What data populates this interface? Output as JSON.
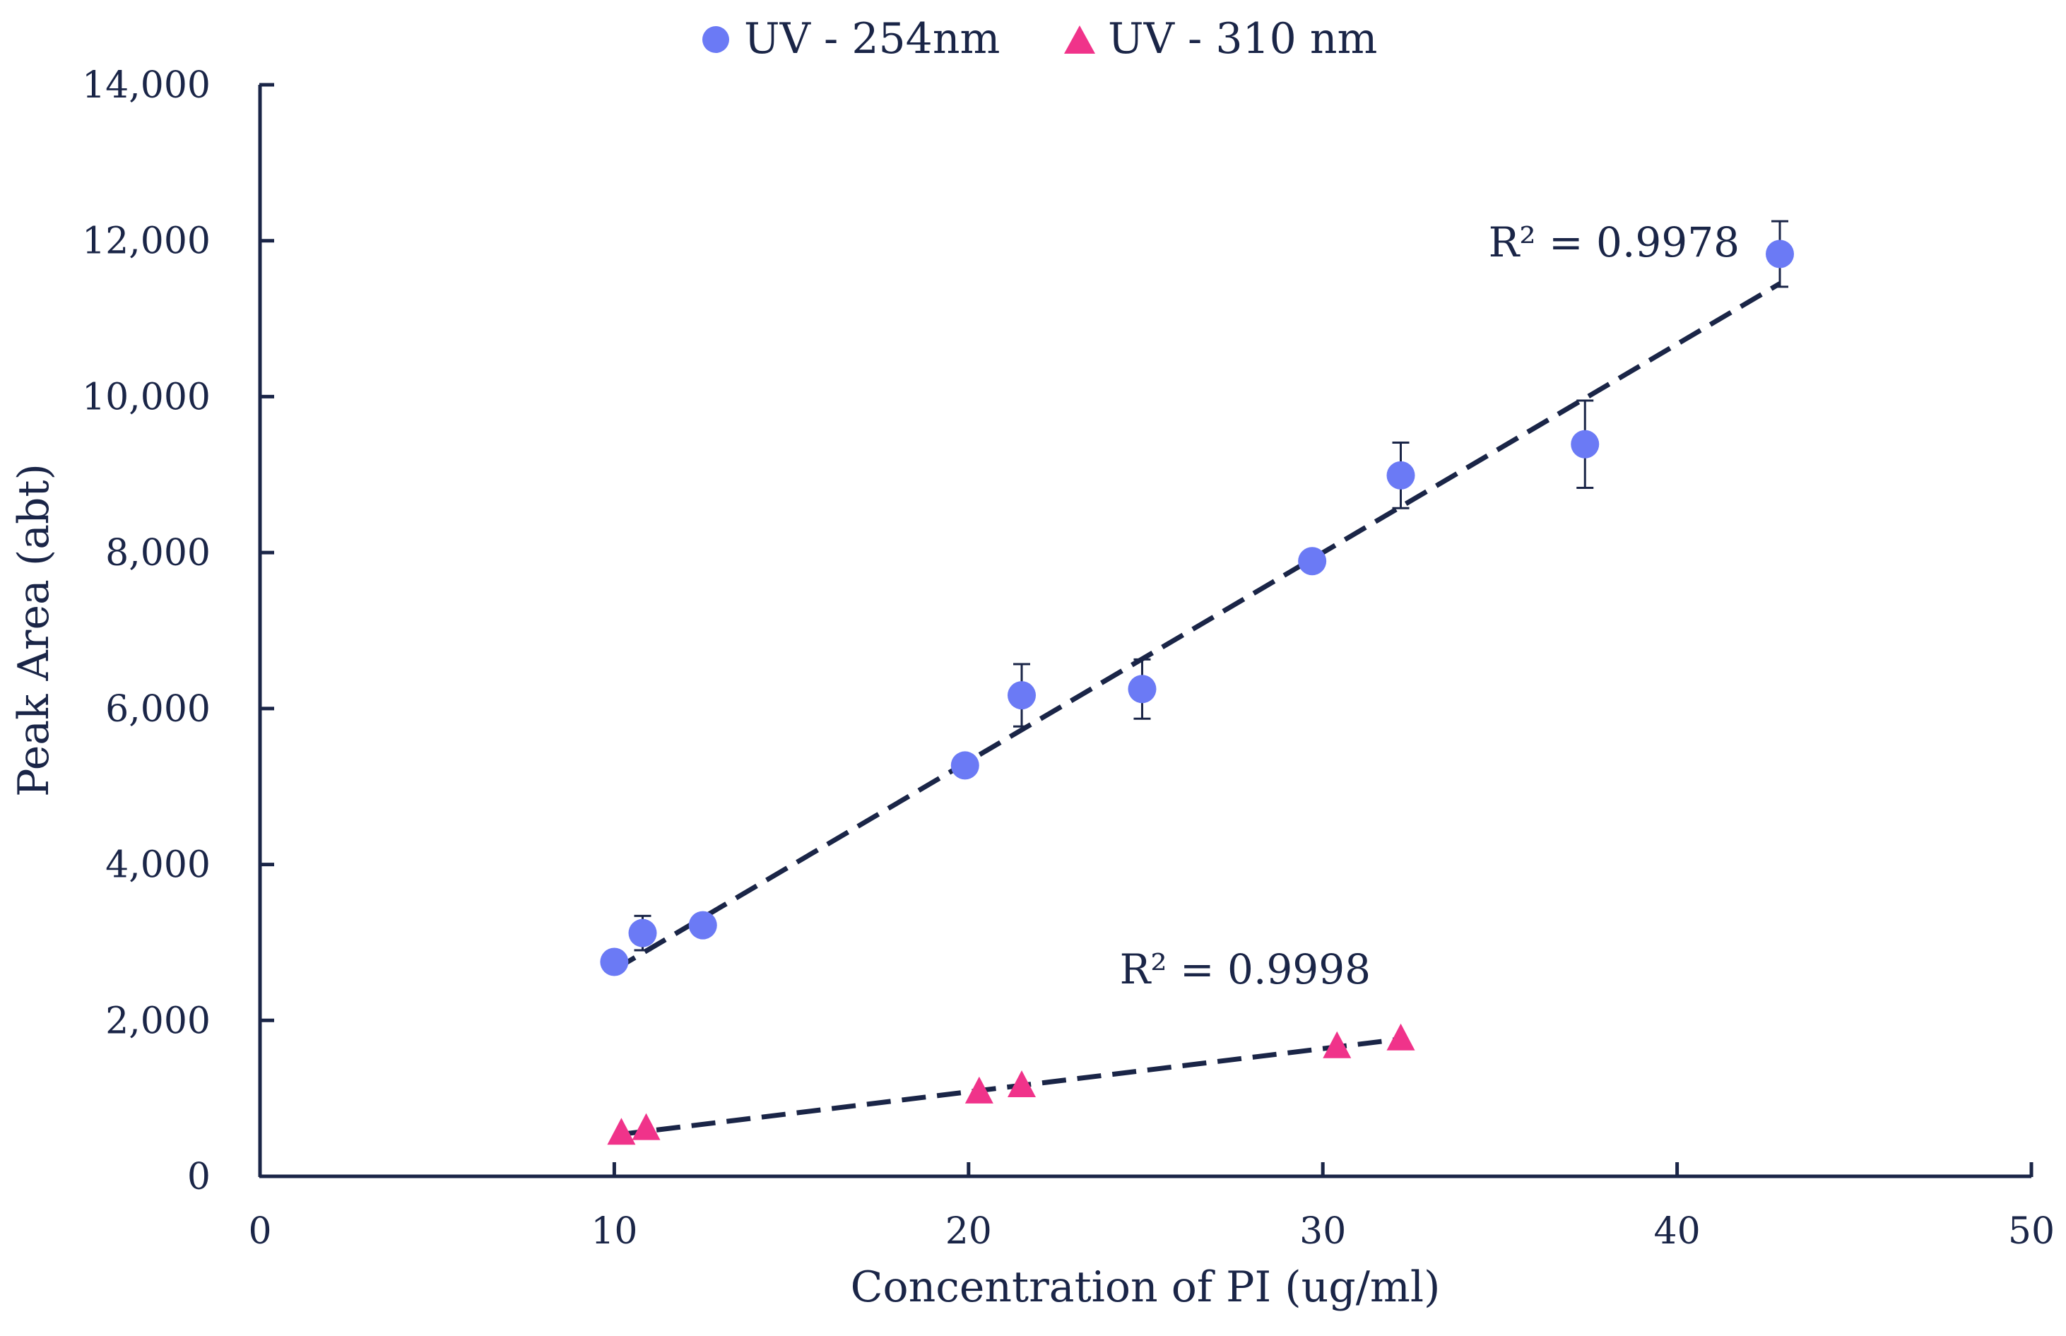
{
  "colors": {
    "axis": "#1a2547",
    "trendline": "#1a2547",
    "series_254": "#6b7af5",
    "series_310": "#f0338a",
    "error_bar": "#1a2547"
  },
  "chart_data": {
    "type": "scatter",
    "title": "",
    "xlabel": "Concentration of PI (ug/ml)",
    "ylabel": "Peak Area (abt)",
    "xlim": [
      0,
      50
    ],
    "ylim": [
      0,
      14000
    ],
    "x_ticks": [
      0,
      10,
      20,
      30,
      40,
      50
    ],
    "x_tick_labels": [
      "0",
      "10",
      "20",
      "30",
      "40",
      "50"
    ],
    "y_ticks": [
      0,
      2000,
      4000,
      6000,
      8000,
      10000,
      12000,
      14000
    ],
    "y_tick_labels": [
      "0",
      "2,000",
      "4,000",
      "6,000",
      "8,000",
      "10,000",
      "12,000",
      "14,000"
    ],
    "grid": false,
    "legend_position": "top-center",
    "series": [
      {
        "name": "UV - 254nm",
        "marker": "circle",
        "points": [
          {
            "x": 10.0,
            "y": 2750,
            "err": 0
          },
          {
            "x": 10.8,
            "y": 3120,
            "err": 220
          },
          {
            "x": 12.5,
            "y": 3220,
            "err": 0
          },
          {
            "x": 19.9,
            "y": 5270,
            "err": 0
          },
          {
            "x": 21.5,
            "y": 6170,
            "err": 400
          },
          {
            "x": 24.9,
            "y": 6250,
            "err": 380
          },
          {
            "x": 29.7,
            "y": 7890,
            "err": 0
          },
          {
            "x": 32.2,
            "y": 8990,
            "err": 420
          },
          {
            "x": 37.4,
            "y": 9390,
            "err": 560
          },
          {
            "x": 42.9,
            "y": 11830,
            "err": 420
          }
        ],
        "trendline": {
          "x": [
            10.0,
            42.9
          ],
          "y": [
            2650,
            11450
          ]
        },
        "r2_label": "R² = 0.9978"
      },
      {
        "name": "UV - 310 nm",
        "marker": "triangle",
        "points": [
          {
            "x": 10.2,
            "y": 550
          },
          {
            "x": 10.9,
            "y": 610
          },
          {
            "x": 20.3,
            "y": 1080
          },
          {
            "x": 21.5,
            "y": 1160
          },
          {
            "x": 30.4,
            "y": 1660
          },
          {
            "x": 32.2,
            "y": 1760
          }
        ],
        "trendline": {
          "x": [
            10.2,
            32.2
          ],
          "y": [
            540,
            1760
          ]
        },
        "r2_label": "R² = 0.9998"
      }
    ]
  }
}
